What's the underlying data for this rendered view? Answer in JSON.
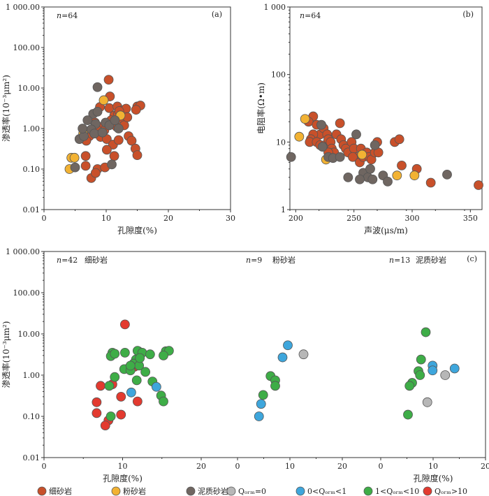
{
  "colors": {
    "fine_sandstone": "#c8502a",
    "siltstone": "#f2b233",
    "muddy_sandstone": "#6f6661",
    "q0": "#b7b7b7",
    "q0to1": "#3ea6dc",
    "q1to10": "#3ead47",
    "qgt10": "#e33a2f",
    "marker_edge": "#555555"
  },
  "legend": [
    {
      "label": "细砂岩",
      "color_key": "fine_sandstone"
    },
    {
      "label": "粉砂岩",
      "color_key": "siltstone"
    },
    {
      "label": "泥质砂岩",
      "color_key": "muddy_sandstone"
    },
    {
      "label": "Qₒᵣₘ=0",
      "color_key": "q0"
    },
    {
      "label": "0<Qₒᵣₘ<1",
      "color_key": "q0to1"
    },
    {
      "label": "1<Qₒᵣₘ<10",
      "color_key": "q1to10"
    },
    {
      "label": "Qₒᵣₘ>10",
      "color_key": "qgt10"
    }
  ],
  "chart_data": [
    {
      "panel": "(a)",
      "type": "scatter",
      "n_label": "n=64",
      "xlabel": "孔隙度(%)",
      "ylabel": "渗透率(10⁻³μm²)",
      "x_scale": "linear",
      "xlim": [
        0,
        30
      ],
      "xticks": [
        0,
        10,
        20,
        30
      ],
      "y_scale": "log",
      "ylim": [
        0.01,
        1000
      ],
      "yticks": [
        0.01,
        0.1,
        1,
        10,
        100,
        1000
      ],
      "ytick_labels": [
        "0.01",
        "0.10",
        "1.00",
        "10.00",
        "100.00",
        "1 000.00"
      ],
      "series": [
        {
          "name": "细砂岩",
          "color_key": "fine_sandstone",
          "points": [
            [
              10.4,
              16
            ],
            [
              10.6,
              6.2
            ],
            [
              9.0,
              3.4
            ],
            [
              10.5,
              3.2
            ],
            [
              11.8,
              3.5
            ],
            [
              12.6,
              2.8
            ],
            [
              13.2,
              3.1
            ],
            [
              15.0,
              3.5
            ],
            [
              15.5,
              3.7
            ],
            [
              14.8,
              2.9
            ],
            [
              11.3,
              2.1
            ],
            [
              11.9,
              2.3
            ],
            [
              12.4,
              1.8
            ],
            [
              8.2,
              1.4
            ],
            [
              9.2,
              1.1
            ],
            [
              9.7,
              0.9
            ],
            [
              10.7,
              1.3
            ],
            [
              11.7,
              1.1
            ],
            [
              12.9,
              1.2
            ],
            [
              8.6,
              0.9
            ],
            [
              7.3,
              0.65
            ],
            [
              6.8,
              0.5
            ],
            [
              9.1,
              0.62
            ],
            [
              10.1,
              0.55
            ],
            [
              13.6,
              0.65
            ],
            [
              14.1,
              0.5
            ],
            [
              11.1,
              0.4
            ],
            [
              10.1,
              0.3
            ],
            [
              14.7,
              0.32
            ],
            [
              15.0,
              0.22
            ],
            [
              6.7,
              0.21
            ],
            [
              11.3,
              0.21
            ],
            [
              6.7,
              0.12
            ],
            [
              8.6,
              0.1
            ],
            [
              9.8,
              0.11
            ],
            [
              7.6,
              0.06
            ],
            [
              8.3,
              0.08
            ],
            [
              13.4,
              1.9
            ],
            [
              10.8,
              1.6
            ],
            [
              12.1,
              2.7
            ],
            [
              12.0,
              0.52
            ]
          ]
        },
        {
          "name": "粉砂岩",
          "color_key": "siltstone",
          "points": [
            [
              9.6,
              5.0
            ],
            [
              6.3,
              0.75
            ],
            [
              4.4,
              0.19
            ],
            [
              4.9,
              0.19
            ],
            [
              4.1,
              0.1
            ],
            [
              12.3,
              2.1
            ]
          ]
        },
        {
          "name": "泥质砂岩",
          "color_key": "muddy_sandstone",
          "points": [
            [
              8.6,
              10.5
            ],
            [
              7.9,
              2.3
            ],
            [
              7.0,
              1.6
            ],
            [
              8.3,
              1.3
            ],
            [
              9.9,
              1.4
            ],
            [
              10.5,
              1.2
            ],
            [
              12.0,
              1.0
            ],
            [
              7.6,
              0.95
            ],
            [
              8.1,
              0.75
            ],
            [
              5.7,
              0.55
            ],
            [
              6.4,
              0.65
            ],
            [
              5.0,
              0.11
            ],
            [
              10.9,
              0.13
            ],
            [
              8.6,
              2.6
            ],
            [
              11.4,
              1.6
            ],
            [
              6.2,
              1.0
            ],
            [
              9.4,
              0.8
            ]
          ]
        }
      ]
    },
    {
      "panel": "(b)",
      "type": "scatter",
      "n_label": "n=64",
      "xlabel": "声波(μs/m)",
      "ylabel": "电阻率(Ω•m)",
      "x_scale": "linear",
      "xlim": [
        195,
        360
      ],
      "xticks": [
        200,
        250,
        300,
        350
      ],
      "y_scale": "log",
      "ylim": [
        1,
        1000
      ],
      "yticks": [
        1,
        10,
        100,
        1000
      ],
      "ytick_labels": [
        "1",
        "10",
        "100",
        "1 000"
      ],
      "series": [
        {
          "name": "细砂岩",
          "color_key": "fine_sandstone",
          "points": [
            [
              215,
              24
            ],
            [
              211,
              20
            ],
            [
              218,
              18
            ],
            [
              221,
              13
            ],
            [
              215,
              13
            ],
            [
              224,
              16
            ],
            [
              227,
              13
            ],
            [
              213,
              11
            ],
            [
              212,
              10
            ],
            [
              218,
              10
            ],
            [
              221,
              9
            ],
            [
              225,
              9
            ],
            [
              228,
              11
            ],
            [
              230,
              10
            ],
            [
              231,
              8
            ],
            [
              233,
              7
            ],
            [
              228,
              7
            ],
            [
              238,
              19
            ],
            [
              235,
              13
            ],
            [
              239,
              11
            ],
            [
              241,
              9
            ],
            [
              243,
              8
            ],
            [
              245,
              7
            ],
            [
              248,
              10
            ],
            [
              250,
              8
            ],
            [
              252,
              6
            ],
            [
              249,
              6
            ],
            [
              255,
              5
            ],
            [
              256,
              8
            ],
            [
              258,
              6
            ],
            [
              261,
              7
            ],
            [
              263,
              6
            ],
            [
              265,
              5.5
            ],
            [
              268,
              7
            ],
            [
              270,
              10
            ],
            [
              271,
              7
            ],
            [
              285,
              10
            ],
            [
              289,
              11
            ],
            [
              291,
              4.5
            ],
            [
              304,
              4
            ],
            [
              316,
              2.5
            ],
            [
              357,
              2.3
            ]
          ]
        },
        {
          "name": "粉砂岩",
          "color_key": "siltstone",
          "points": [
            [
              203,
              12
            ],
            [
              208,
              22
            ],
            [
              226,
              5.5
            ],
            [
              257,
              6.5
            ],
            [
              302,
              3.2
            ],
            [
              287,
              3.2
            ]
          ]
        },
        {
          "name": "泥质砂岩",
          "color_key": "muddy_sandstone",
          "points": [
            [
              196,
              6
            ],
            [
              222,
              18
            ],
            [
              223,
              8.5
            ],
            [
              228,
              6
            ],
            [
              232,
              5.8
            ],
            [
              245,
              3
            ],
            [
              252,
              13
            ],
            [
              258,
              3.5
            ],
            [
              262,
              3
            ],
            [
              264,
              4
            ],
            [
              268,
              9
            ],
            [
              275,
              3.2
            ],
            [
              279,
              2.6
            ],
            [
              330,
              3.3
            ],
            [
              266,
              2.8
            ],
            [
              238,
              6
            ],
            [
              255,
              2.8
            ]
          ]
        }
      ]
    },
    {
      "panel": "(c)",
      "type": "scatter",
      "subplots": [
        {
          "n_label": "n=42",
          "rock": "细砂岩",
          "xlabel": "孔隙度(%)",
          "ylabel": "渗透率(10⁻³μm²)",
          "x_scale": "linear",
          "xlim": [
            0,
            20
          ],
          "xticks": [
            0,
            10,
            20
          ],
          "y_scale": "log",
          "ylim": [
            0.01,
            1000
          ],
          "yticks": [
            0.01,
            0.1,
            1,
            10,
            100,
            1000
          ],
          "ytick_labels": [
            "0.01",
            "0.10",
            "1.00",
            "10.00",
            "100.00",
            "1 000.00"
          ],
          "series": [
            {
              "name": "Qₒᵣₘ>10",
              "color_key": "qgt10",
              "points": [
                [
                  10.3,
                  17
                ],
                [
                  12.0,
                  3.8
                ],
                [
                  11.2,
                  1.6
                ],
                [
                  10.8,
                  1.5
                ],
                [
                  8.7,
                  0.6
                ],
                [
                  7.2,
                  0.55
                ],
                [
                  9.8,
                  0.3
                ],
                [
                  6.7,
                  0.22
                ],
                [
                  11.9,
                  0.23
                ],
                [
                  6.7,
                  0.12
                ],
                [
                  8.2,
                  0.08
                ],
                [
                  7.8,
                  0.06
                ],
                [
                  9.8,
                  0.11
                ],
                [
                  11.5,
                  1.6
                ]
              ]
            },
            {
              "name": "1<Qₒᵣₘ<10",
              "color_key": "q1to10",
              "points": [
                [
                  8.7,
                  3.5
                ],
                [
                  8.5,
                  2.9
                ],
                [
                  9.0,
                  3.3
                ],
                [
                  10.3,
                  3.5
                ],
                [
                  11.9,
                  3.9
                ],
                [
                  12.5,
                  3.5
                ],
                [
                  13.5,
                  3.2
                ],
                [
                  15.5,
                  3.8
                ],
                [
                  15.9,
                  3.9
                ],
                [
                  15.2,
                  3.0
                ],
                [
                  11.7,
                  2.4
                ],
                [
                  11.4,
                  1.9
                ],
                [
                  12.1,
                  1.7
                ],
                [
                  10.2,
                  1.4
                ],
                [
                  11.0,
                  1.3
                ],
                [
                  12.9,
                  1.2
                ],
                [
                  9.0,
                  0.9
                ],
                [
                  11.8,
                  0.75
                ],
                [
                  13.8,
                  0.7
                ],
                [
                  8.3,
                  0.55
                ],
                [
                  14.9,
                  0.32
                ],
                [
                  15.2,
                  0.23
                ],
                [
                  8.5,
                  0.1
                ],
                [
                  11.0,
                  1.7
                ],
                [
                  12.2,
                  2.6
                ]
              ]
            },
            {
              "name": "0<Qₒᵣₘ<1",
              "color_key": "q0to1",
              "points": [
                [
                  11.1,
                  0.38
                ],
                [
                  14.3,
                  0.52
                ]
              ]
            }
          ]
        },
        {
          "n_label": "n=9",
          "rock": "粉砂岩",
          "xlabel": "",
          "x_scale": "linear",
          "xlim": [
            0,
            20
          ],
          "xticks": [
            0,
            10,
            20
          ],
          "y_scale": "log",
          "ylim": [
            0.01,
            1000
          ],
          "series": [
            {
              "name": "0<Qₒᵣₘ<1",
              "color_key": "q0to1",
              "points": [
                [
                  9.6,
                  5.3
                ],
                [
                  8.6,
                  2.7
                ],
                [
                  4.5,
                  0.2
                ],
                [
                  4.1,
                  0.1
                ]
              ]
            },
            {
              "name": "1<Qₒᵣₘ<10",
              "color_key": "q1to10",
              "points": [
                [
                  6.3,
                  0.95
                ],
                [
                  7.2,
                  0.75
                ],
                [
                  7.2,
                  0.55
                ],
                [
                  4.9,
                  0.33
                ]
              ]
            },
            {
              "name": "Qₒᵣₘ=0",
              "color_key": "q0",
              "points": [
                [
                  12.6,
                  3.2
                ]
              ]
            }
          ]
        },
        {
          "n_label": "n=13",
          "rock": "泥质砂岩",
          "xlabel": "孔隙度(%)",
          "x_scale": "linear",
          "xlim": [
            0,
            20
          ],
          "xticks": [
            0,
            10,
            20
          ],
          "y_scale": "log",
          "ylim": [
            0.01,
            1000
          ],
          "series": [
            {
              "name": "1<Qₒᵣₘ<10",
              "color_key": "q1to10",
              "points": [
                [
                  8.6,
                  11
                ],
                [
                  7.7,
                  2.4
                ],
                [
                  7.2,
                  1.25
                ],
                [
                  7.5,
                  1.0
                ],
                [
                  6.0,
                  0.65
                ],
                [
                  5.5,
                  0.55
                ],
                [
                  5.2,
                  0.11
                ]
              ]
            },
            {
              "name": "0<Qₒᵣₘ<1",
              "color_key": "q0to1",
              "points": [
                [
                  9.9,
                  1.7
                ],
                [
                  9.9,
                  1.3
                ],
                [
                  14.1,
                  1.45
                ]
              ]
            },
            {
              "name": "Qₒᵣₘ=0",
              "color_key": "q0",
              "points": [
                [
                  12.3,
                  1.0
                ],
                [
                  8.9,
                  0.22
                ]
              ]
            }
          ]
        }
      ]
    }
  ]
}
